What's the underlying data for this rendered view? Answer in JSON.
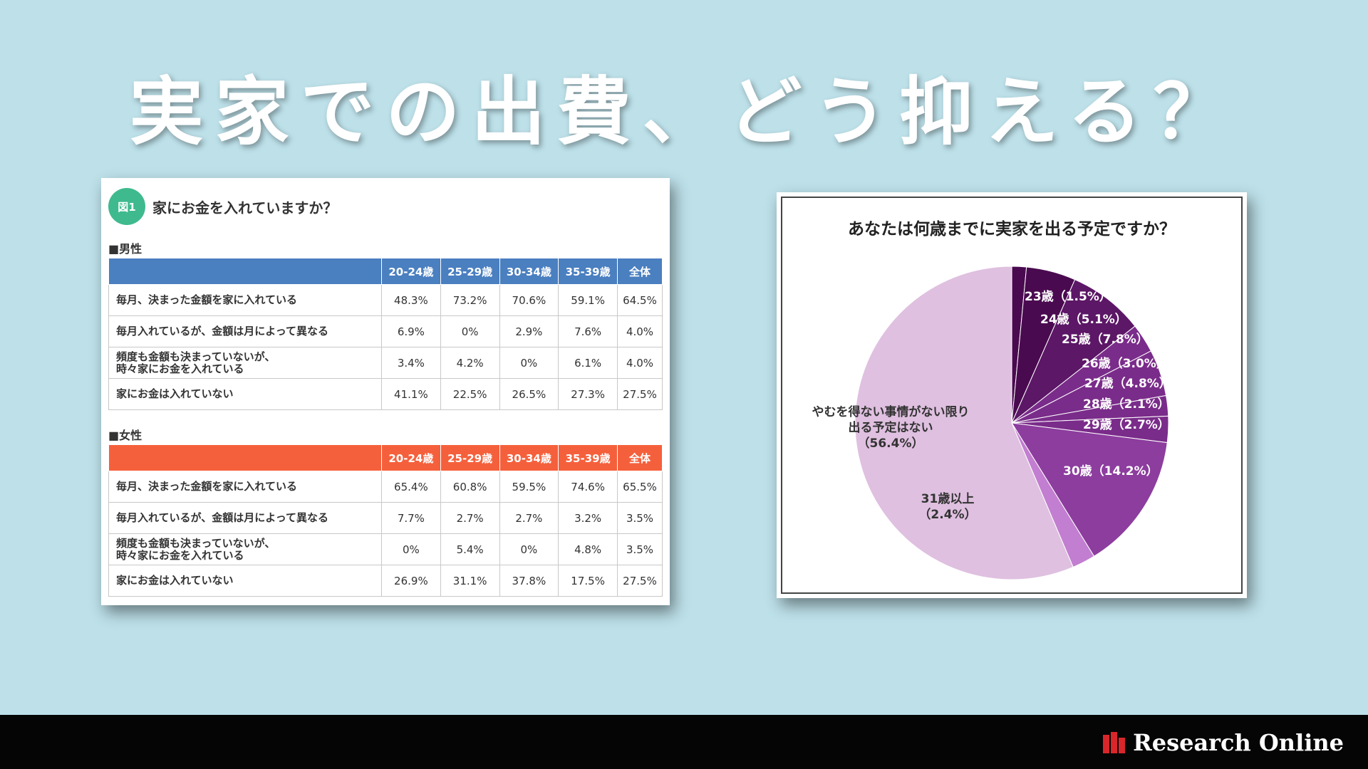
{
  "title": "実家での出費、どう抑える？",
  "footer": {
    "brand": "Research Online"
  },
  "table_card": {
    "badge": "図1",
    "question": "家にお金を入れていますか？",
    "colors": {
      "male_header": "#4a7fc0",
      "female_header": "#f5603c"
    }
  },
  "chart_data": [
    {
      "type": "table",
      "title": "家にお金を入れていますか？",
      "columns": [
        "20-24歳",
        "25-29歳",
        "30-34歳",
        "35-39歳",
        "全体"
      ],
      "groups": [
        {
          "name": "■男性",
          "rows": [
            {
              "label": "毎月、決まった金額を家に入れている",
              "values": [
                "48.3%",
                "73.2%",
                "70.6%",
                "59.1%",
                "64.5%"
              ]
            },
            {
              "label": "毎月入れているが、金額は月によって異なる",
              "values": [
                "6.9%",
                "0%",
                "2.9%",
                "7.6%",
                "4.0%"
              ]
            },
            {
              "label": "頻度も金額も決まっていないが、\n時々家にお金を入れている",
              "values": [
                "3.4%",
                "4.2%",
                "0%",
                "6.1%",
                "4.0%"
              ]
            },
            {
              "label": "家にお金は入れていない",
              "values": [
                "41.1%",
                "22.5%",
                "26.5%",
                "27.3%",
                "27.5%"
              ]
            }
          ]
        },
        {
          "name": "■女性",
          "rows": [
            {
              "label": "毎月、決まった金額を家に入れている",
              "values": [
                "65.4%",
                "60.8%",
                "59.5%",
                "74.6%",
                "65.5%"
              ]
            },
            {
              "label": "毎月入れているが、金額は月によって異なる",
              "values": [
                "7.7%",
                "2.7%",
                "2.7%",
                "3.2%",
                "3.5%"
              ]
            },
            {
              "label": "頻度も金額も決まっていないが、\n時々家にお金を入れている",
              "values": [
                "0%",
                "5.4%",
                "0%",
                "4.8%",
                "3.5%"
              ]
            },
            {
              "label": "家にお金は入れていない",
              "values": [
                "26.9%",
                "31.1%",
                "37.8%",
                "17.5%",
                "27.5%"
              ]
            }
          ]
        }
      ]
    },
    {
      "type": "pie",
      "title": "あなたは何歳までに実家を出る予定ですか？",
      "slices": [
        {
          "label": "23歳（1.5%）",
          "value": 1.5,
          "color": "#4a0a50"
        },
        {
          "label": "24歳（5.1%）",
          "value": 5.1,
          "color": "#4a0a50"
        },
        {
          "label": "25歳（7.8%）",
          "value": 7.8,
          "color": "#5c1766"
        },
        {
          "label": "26歳（3.0%）",
          "value": 3.0,
          "color": "#7a2c8a"
        },
        {
          "label": "27歳（4.8%）",
          "value": 4.8,
          "color": "#7a2c8a"
        },
        {
          "label": "28歳（2.1%）",
          "value": 2.1,
          "color": "#7a2c8a"
        },
        {
          "label": "29歳（2.7%）",
          "value": 2.7,
          "color": "#7a2c8a"
        },
        {
          "label": "30歳（14.2%）",
          "value": 14.2,
          "color": "#8c3d9e"
        },
        {
          "label": "31歳以上\n（2.4%）",
          "value": 2.4,
          "color": "#c27ed0"
        },
        {
          "label": "やむを得ない事情がない限り\n出る予定はない\n（56.4%）",
          "value": 56.4,
          "color": "#dfc0e0"
        }
      ]
    }
  ]
}
